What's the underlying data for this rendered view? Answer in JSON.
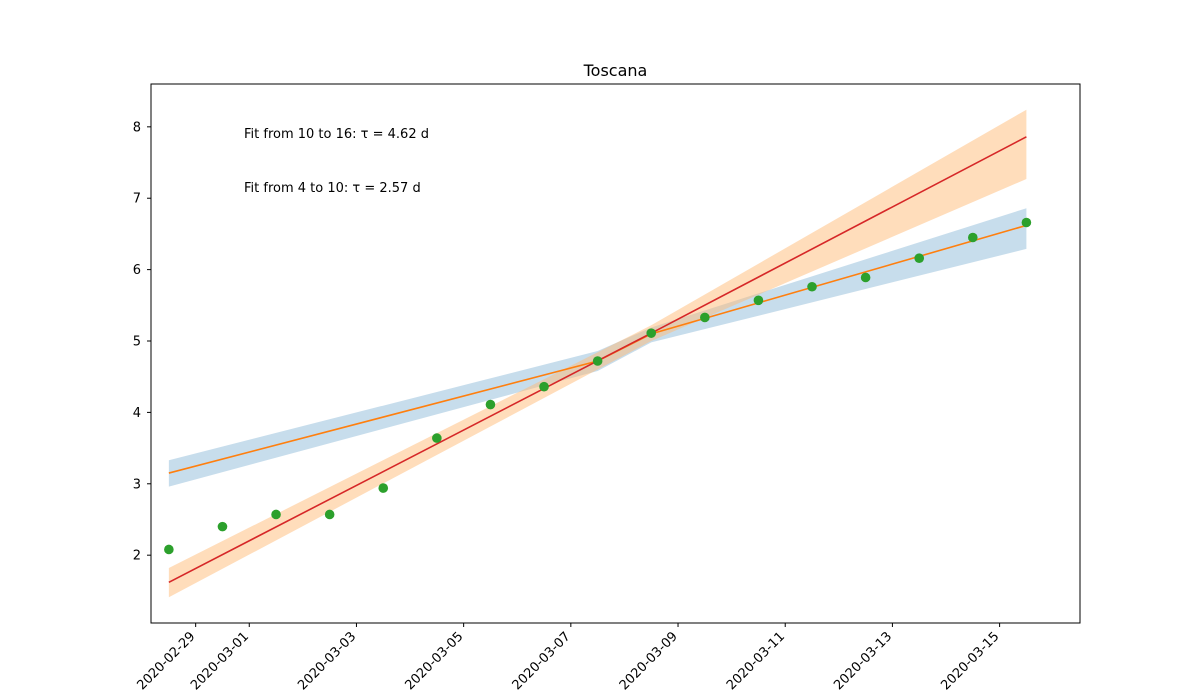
{
  "chart_data": {
    "type": "scatter",
    "title": "Toscana",
    "xlabel": "",
    "ylabel": "",
    "x_tick_labels": [
      "2020-02-29",
      "2020-03-01",
      "2020-03-03",
      "2020-03-05",
      "2020-03-07",
      "2020-03-09",
      "2020-03-11",
      "2020-03-13",
      "2020-03-15"
    ],
    "ylim": [
      1.05,
      8.6
    ],
    "y_ticks": [
      2,
      3,
      4,
      5,
      6,
      7,
      8
    ],
    "annotations": [
      "Fit from 10 to 16: τ = 4.62 d",
      "Fit from 4 to 10: τ = 2.57 d"
    ],
    "series": [
      {
        "kind": "scatter",
        "color": "#2ca02c",
        "points": [
          {
            "x": "2020-02-28T12:00",
            "y": 2.08
          },
          {
            "x": "2020-02-29T12:00",
            "y": 2.4
          },
          {
            "x": "2020-03-01T12:00",
            "y": 2.57
          },
          {
            "x": "2020-03-02T12:00",
            "y": 2.57
          },
          {
            "x": "2020-03-03T12:00",
            "y": 2.94
          },
          {
            "x": "2020-03-04T12:00",
            "y": 3.64
          },
          {
            "x": "2020-03-05T12:00",
            "y": 4.11
          },
          {
            "x": "2020-03-06T12:00",
            "y": 4.36
          },
          {
            "x": "2020-03-07T12:00",
            "y": 4.72
          },
          {
            "x": "2020-03-08T12:00",
            "y": 5.11
          },
          {
            "x": "2020-03-09T12:00",
            "y": 5.33
          },
          {
            "x": "2020-03-10T12:00",
            "y": 5.57
          },
          {
            "x": "2020-03-11T12:00",
            "y": 5.76
          },
          {
            "x": "2020-03-12T12:00",
            "y": 5.89
          },
          {
            "x": "2020-03-13T12:00",
            "y": 6.16
          },
          {
            "x": "2020-03-14T12:00",
            "y": 6.45
          },
          {
            "x": "2020-03-15T12:00",
            "y": 6.66
          }
        ]
      },
      {
        "kind": "line",
        "color": "#ff7f0e",
        "band_color": "#1f77b4",
        "points": [
          {
            "x": "2020-02-28T12:00",
            "y": 3.15,
            "low": 2.96,
            "high": 3.33
          },
          {
            "x": "2020-03-07T12:00",
            "y": 4.72,
            "low": 4.58,
            "high": 4.86
          },
          {
            "x": "2020-03-08T12:00",
            "y": 5.1,
            "low": 4.98,
            "high": 5.19
          },
          {
            "x": "2020-03-15T12:00",
            "y": 6.62,
            "low": 6.29,
            "high": 6.86
          }
        ]
      },
      {
        "kind": "line",
        "color": "#d62728",
        "band_color": "#ffbb78",
        "points": [
          {
            "x": "2020-02-28T12:00",
            "y": 1.62,
            "low": 1.41,
            "high": 1.82
          },
          {
            "x": "2020-03-08T12:00",
            "y": 5.11,
            "low": 5.0,
            "high": 5.22
          },
          {
            "x": "2020-03-15T12:00",
            "y": 7.86,
            "low": 7.27,
            "high": 8.24
          }
        ]
      }
    ]
  }
}
